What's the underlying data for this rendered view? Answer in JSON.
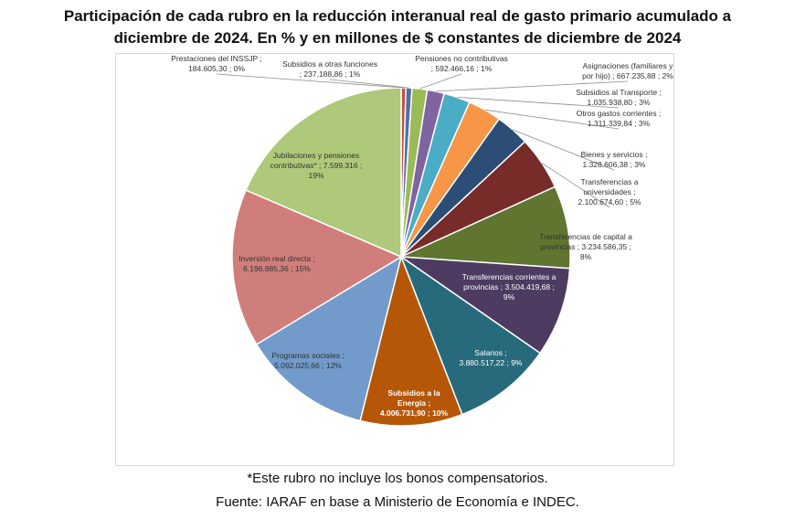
{
  "title": [
    "Participación de cada rubro en la reducción interanual real de gasto primario acumulado a",
    "diciembre de 2024. En % y en millones de $ constantes de diciembre de 2024"
  ],
  "footnote": "*Este rubro no incluye los bonos compensatorios.",
  "source": "Fuente: IARAF en base a Ministerio de Economía e INDEC.",
  "chart_data": {
    "type": "pie",
    "title": "Participación de cada rubro en la reducción interanual real de gasto primario acumulado a diciembre de 2024. En % y en millones de $ constantes de diciembre de 2024",
    "slices": [
      {
        "name": "Prestaciones del INSSJP",
        "value": 184605.3,
        "pct": "0%",
        "color": "#c0504d",
        "label": [
          "Prestaciones del INSSJP ;",
          "184.605,30 ; 0%"
        ]
      },
      {
        "name": "Subsidios a otras funciones",
        "value": 237188.86,
        "pct": "1%",
        "color": "#4f6fa8",
        "label": [
          "Subsidios a otras funciones",
          "; 237.188,86 ; 1%"
        ]
      },
      {
        "name": "Pensiones no contributivas",
        "value": 592466.16,
        "pct": "1%",
        "color": "#9bbb59",
        "label": [
          "Pensiones no contributivas",
          "; 592.466,16 ; 1%"
        ]
      },
      {
        "name": "Asignaciones (familiares y por hijo)",
        "value": 667235.88,
        "pct": "2%",
        "color": "#8064a2",
        "label": [
          "Asignaciones (familiares y",
          "por hijo) ; 667.235,88 ; 2%"
        ]
      },
      {
        "name": "Subsidios al Transporte",
        "value": 1035938.8,
        "pct": "3%",
        "color": "#4bacc6",
        "label": [
          "Subsidios al Transporte ;",
          "1.035.938,80 ; 3%"
        ]
      },
      {
        "name": "Otros gastos corrientes",
        "value": 1311339.84,
        "pct": "3%",
        "color": "#f79646",
        "label": [
          "Otros gastos corrientes ;",
          "1.311.339,84 ; 3%"
        ]
      },
      {
        "name": "Bienes y servicios",
        "value": 1328606.38,
        "pct": "3%",
        "color": "#2c4d75",
        "label": [
          "Bienes y servicios ;",
          "1.328.606,38 ; 3%"
        ]
      },
      {
        "name": "Transferencias a universidades",
        "value": 2100674.6,
        "pct": "5%",
        "color": "#772c2a",
        "label": [
          "Transferencias a",
          "universidades ;",
          "2.100.674,60 ; 5%"
        ]
      },
      {
        "name": "Transferencias de capital a provincias",
        "value": 3234586.35,
        "pct": "8%",
        "color": "#5f7530",
        "label": [
          "Transferencias de capital a",
          "provincias ; 3.234.586,35 ;",
          "8%"
        ]
      },
      {
        "name": "Transferencias corrientes a provincias",
        "value": 3504419.68,
        "pct": "9%",
        "color": "#4d3b62",
        "label": [
          "Transferencias corrientes a",
          "provincias ; 3.504.419,68 ;",
          "9%"
        ]
      },
      {
        "name": "Salarios",
        "value": 3880517.22,
        "pct": "9%",
        "color": "#276a7c",
        "label": [
          "Salarios ;",
          "3.880.517,22 ; 9%"
        ]
      },
      {
        "name": "Subsidios a la Energía",
        "value": 4006731.9,
        "pct": "10%",
        "color": "#b65708",
        "label": [
          "Subsidios a la",
          "Energía ;",
          "4.006.731,90 ; 10%"
        ]
      },
      {
        "name": "Programas sociales",
        "value": 5092025.66,
        "pct": "12%",
        "color": "#729aca",
        "label": [
          "Programas sociales ;",
          "5.092.025,66 ; 12%"
        ]
      },
      {
        "name": "Inversión real directa",
        "value": 6196885.36,
        "pct": "15%",
        "color": "#d07e7b",
        "label": [
          "Inversión real directa ;",
          "6.196.885,36 ; 15%"
        ]
      },
      {
        "name": "Jubilaciones y pensiones contributivas*",
        "value": 7599316,
        "pct": "19%",
        "color": "#afc97a",
        "label": [
          "Jubilaciones y pensiones",
          "contributivas* ; 7.599.316 ;",
          "19%"
        ]
      }
    ]
  }
}
